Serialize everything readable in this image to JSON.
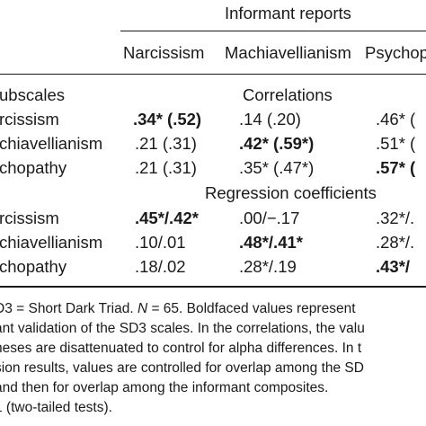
{
  "header": {
    "group_label": "Informant reports",
    "columns": [
      "Narcissism",
      "Machiavellianism",
      "Psychop"
    ]
  },
  "rows_label": "ubscales",
  "sections": {
    "correlations": "Correlations",
    "regression": "Regression coefficients"
  },
  "correlations": [
    {
      "label": "rcissism",
      "c1": ".34* (.52)",
      "c2": ".14 (.20)",
      "c3": ".46* (",
      "bold": 1
    },
    {
      "label": "chiavellianism",
      "c1": ".21 (.31)",
      "c2": ".42* (.59*)",
      "c3": ".51* (",
      "bold": 2
    },
    {
      "label": "chopathy",
      "c1": ".21 (.31)",
      "c2": ".35* (.47*)",
      "c3": ".57* (",
      "bold": 3
    }
  ],
  "regression": [
    {
      "label": "rcissism",
      "c1": ".45*/.42*",
      "c2": ".00/−.17",
      "c3": ".32*/.",
      "bold": 1
    },
    {
      "label": "chiavellianism",
      "c1": ".10/.01",
      "c2": ".48*/.41*",
      "c3": ".28*/.",
      "bold": 2
    },
    {
      "label": "chopathy",
      "c1": ".18/.02",
      "c2": ".28*/.19",
      "c3": ".43*/",
      "bold": 3
    }
  ],
  "notes": {
    "line1_a": "D3 = Short Dark Triad. ",
    "line1_n": "N",
    "line1_b": " = 65. Boldfaced values represent",
    "line2": "ant validation of the SD3 scales. In the correlations, the valu",
    "line3": "heses are disattenuated to control for alpha differences. In t",
    "line4": "sion results, values are controlled for overlap among the SD",
    "line5": "and then for overlap among the informant composites.",
    "line6": "1 (two-tailed tests)."
  }
}
